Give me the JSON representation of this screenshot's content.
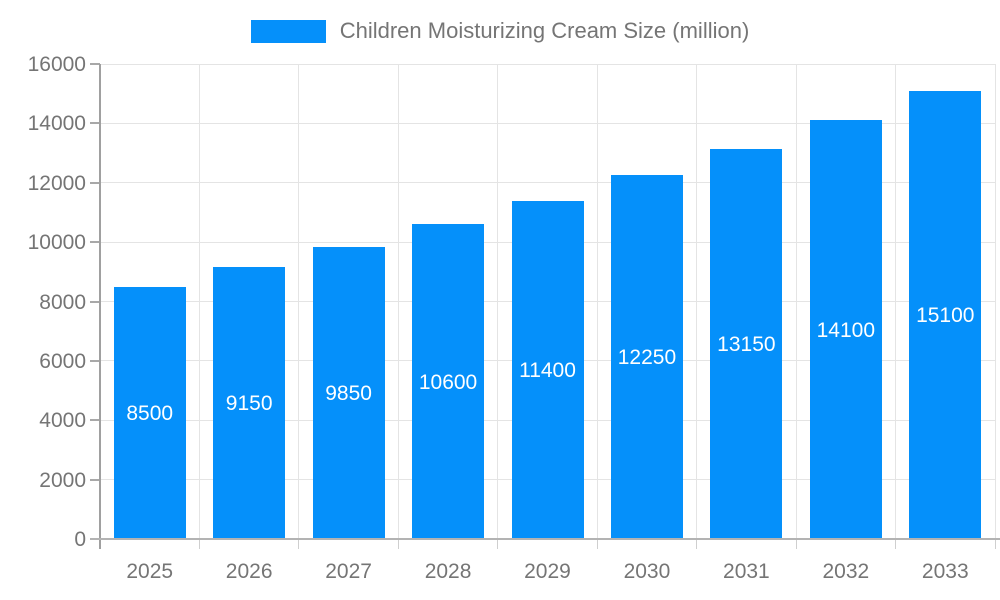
{
  "chart_data": {
    "type": "bar",
    "title": "Children Moisturizing Cream Size (million)",
    "legend": [
      "Children Moisturizing Cream Size (million)"
    ],
    "legend_position": "top",
    "categories": [
      "2025",
      "2026",
      "2027",
      "2028",
      "2029",
      "2030",
      "2031",
      "2032",
      "2033"
    ],
    "series": [
      {
        "name": "Children Moisturizing Cream Size (million)",
        "values": [
          8500,
          9150,
          9850,
          10600,
          11400,
          12250,
          13150,
          14100,
          15100
        ]
      }
    ],
    "value_labels_shown": true,
    "value_label_position": "inside-center",
    "xlabel": "",
    "ylabel": "",
    "ylim": [
      0,
      16000
    ],
    "ytick_step": 2000,
    "yticks": [
      0,
      2000,
      4000,
      6000,
      8000,
      10000,
      12000,
      14000,
      16000
    ],
    "grid": true,
    "colors": {
      "bar": "#0590fa",
      "value_label_text": "#ffffff",
      "axis_text": "#757575",
      "gridline": "#e4e4e4",
      "axis_line": "#a8a8a8"
    }
  }
}
